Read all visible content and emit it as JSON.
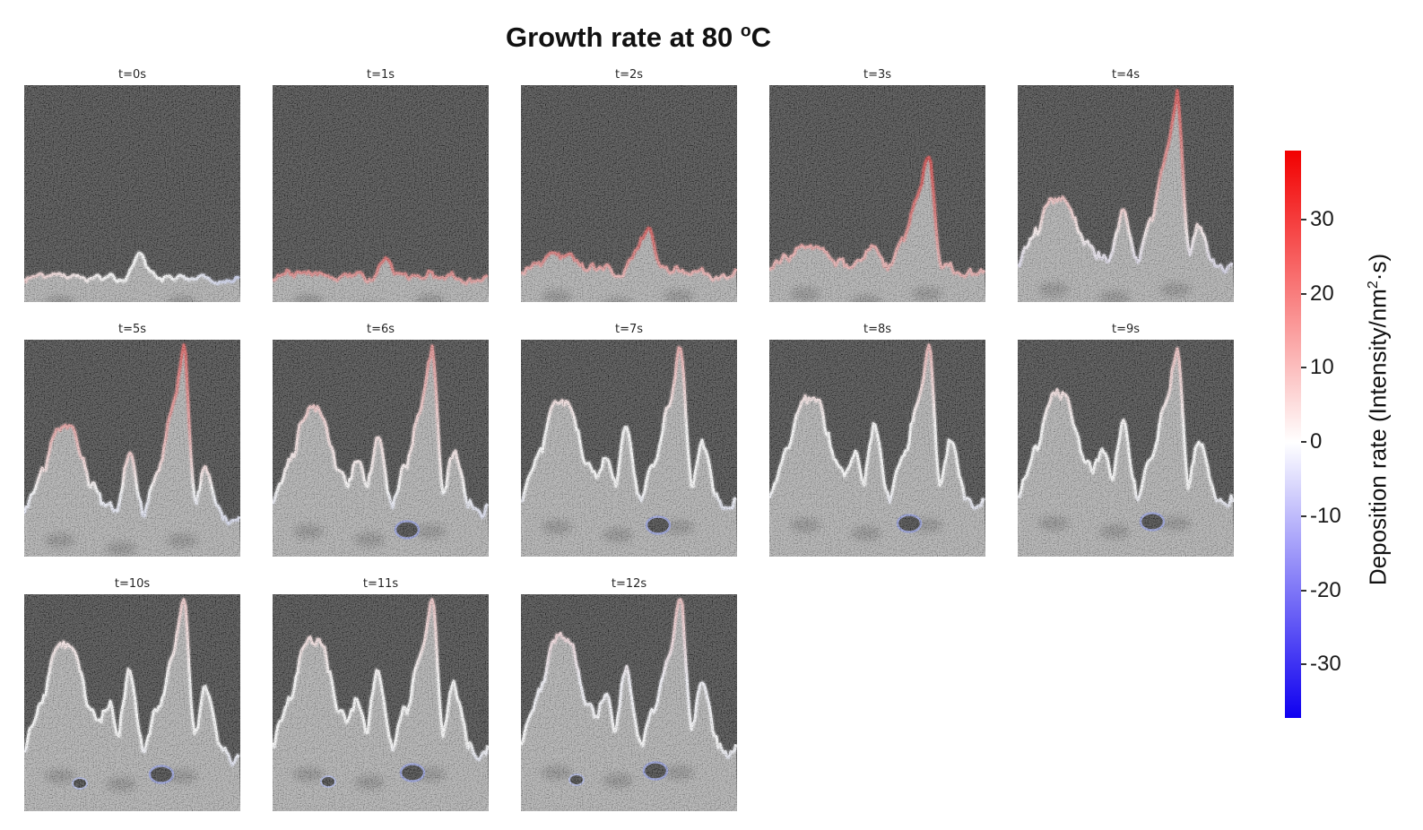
{
  "figure": {
    "title_pre": "Growth rate at 80 ",
    "title_sup": "o",
    "title_post": "C",
    "title_full": "Growth rate at 80 °C",
    "background_color": "#ffffff"
  },
  "chart_data": {
    "type": "heatmap",
    "title": "Growth rate at 80 °C",
    "colormap": "bwr (blue-white-red)",
    "colorbar_label": "Deposition rate (Intensity/nm²·s)",
    "colorbar_label_pre": "Deposition rate (Intensity/nm",
    "colorbar_label_sup": "2",
    "colorbar_label_post": "·s)",
    "colorbar_ticks": [
      30,
      20,
      10,
      0,
      -10,
      -20,
      -30
    ],
    "colorbar_range": [
      -37.2,
      39.3
    ],
    "color_positive": "#f20000",
    "color_zero": "#ffffff",
    "color_negative": "#0f00f0",
    "legend_position": "right",
    "grid": "off",
    "image_colors": {
      "background": "#323232",
      "deposit": "#ababab"
    },
    "frames": [
      {
        "label": "t=0s",
        "time_s": 0,
        "axis": "x",
        "contour": [
          "#eec6c6",
          "#ffffff",
          "#ffffff",
          "#c6cdf0"
        ],
        "render": {
          "base": 215,
          "rough": 4,
          "lobe": 0,
          "mid": 28,
          "midx": 130,
          "midw": 8,
          "spike": 0,
          "armL": 0,
          "armR": 0,
          "holes": 0
        }
      },
      {
        "label": "t=1s",
        "time_s": 1,
        "axis": "y",
        "contour": [
          "#d85a5a",
          "#dd7f7f",
          "#eaafaf",
          "#e2a6a6"
        ],
        "render": {
          "base": 213,
          "rough": 5,
          "lobe": 0,
          "mid": 15,
          "midx": 128,
          "midw": 9,
          "spike": 0,
          "armL": 0,
          "armR": 0,
          "holes": 0
        }
      },
      {
        "label": "t=2s",
        "time_s": 2,
        "axis": "y",
        "contour": [
          "#d14646",
          "#da7070",
          "#eeb6b6",
          "#e0a8a8"
        ],
        "render": {
          "base": 208,
          "rough": 6,
          "lobe": 14,
          "mid": 46,
          "midx": 140,
          "midw": 13,
          "spike": 0,
          "armL": 0,
          "armR": 0,
          "holes": 0
        }
      },
      {
        "label": "t=3s",
        "time_s": 3,
        "axis": "y",
        "contour": [
          "#cf3636",
          "#d86363",
          "#eaa8a8",
          "#dfa2a2"
        ],
        "render": {
          "base": 205,
          "rough": 7,
          "lobe": 22,
          "mid": 30,
          "midx": 112,
          "midw": 10,
          "spike": 125,
          "armL": 0,
          "armR": 0,
          "holes": 0
        }
      },
      {
        "label": "t=4s",
        "time_s": 4,
        "axis": "y",
        "contour": [
          "#d54040",
          "#e28c8c",
          "#fdf3f3",
          "#bcc2ea"
        ],
        "render": {
          "base": 200,
          "rough": 8,
          "lobe": 70,
          "mid": 0,
          "midx": 100,
          "midw": 13,
          "spike": 186,
          "armL": 58,
          "armR": 40,
          "holes": 0
        }
      },
      {
        "label": "t=5s",
        "time_s": 5,
        "axis": "y",
        "contour": [
          "#d94f4f",
          "#e69898",
          "#ffffff",
          "#b4bce8"
        ],
        "render": {
          "base": 196,
          "rough": 9,
          "lobe": 95,
          "mid": 0,
          "midx": 100,
          "midw": 13,
          "spike": 185,
          "armL": 66,
          "armR": 50,
          "holes": 0
        }
      },
      {
        "label": "t=6s",
        "time_s": 6,
        "axis": "y",
        "contour": [
          "#e08080",
          "#f6d8d8",
          "#ffffff",
          "#a2abdf"
        ],
        "render": {
          "base": 186,
          "rough": 10,
          "lobe": 105,
          "mid": 45,
          "midx": 95,
          "midw": 14,
          "spike": 170,
          "armL": 76,
          "armR": 58,
          "holes": 1
        }
      },
      {
        "label": "t=7s",
        "time_s": 7,
        "axis": "y",
        "contour": [
          "#e8a0a0",
          "#ffffff",
          "#ffffff",
          "#9fa8dd"
        ],
        "render": {
          "base": 181,
          "rough": 10,
          "lobe": 108,
          "mid": 46,
          "midx": 95,
          "midw": 14,
          "spike": 169,
          "armL": 80,
          "armR": 62,
          "holes": 1
        }
      },
      {
        "label": "t=8s",
        "time_s": 8,
        "axis": "y",
        "contour": [
          "#ebadad",
          "#ffffff",
          "#ffffff",
          "#9ea6dc"
        ],
        "render": {
          "base": 179,
          "rough": 10,
          "lobe": 110,
          "mid": 47,
          "midx": 95,
          "midw": 14,
          "spike": 167,
          "armL": 81,
          "armR": 63,
          "holes": 1
        }
      },
      {
        "label": "t=9s",
        "time_s": 9,
        "axis": "y",
        "contour": [
          "#eebaba",
          "#ffffff",
          "#ffffff",
          "#9ca4da"
        ],
        "render": {
          "base": 177,
          "rough": 10,
          "lobe": 112,
          "mid": 48,
          "midx": 95,
          "midw": 14,
          "spike": 165,
          "armL": 82,
          "armR": 64,
          "holes": 1
        }
      },
      {
        "label": "t=10s",
        "time_s": 10,
        "axis": "y",
        "contour": [
          "#f1c6c6",
          "#ffffff",
          "#ffffff",
          "#9aa2d9"
        ],
        "render": {
          "base": 175,
          "rough": 11,
          "lobe": 115,
          "mid": 49,
          "midx": 94,
          "midw": 14,
          "spike": 165,
          "armL": 84,
          "armR": 66,
          "holes": 2
        }
      },
      {
        "label": "t=11s",
        "time_s": 11,
        "axis": "y",
        "contour": [
          "#efc0c0",
          "#ffffff",
          "#ffffff",
          "#98a1d8"
        ],
        "render": {
          "base": 173,
          "rough": 11,
          "lobe": 118,
          "mid": 50,
          "midx": 94,
          "midw": 14,
          "spike": 165,
          "armL": 85,
          "armR": 68,
          "holes": 2
        }
      },
      {
        "label": "t=12s",
        "time_s": 12,
        "axis": "y",
        "contour": [
          "#edb9b9",
          "#f7f7ff",
          "#ffffff",
          "#96a0d7"
        ],
        "render": {
          "base": 171,
          "rough": 11,
          "lobe": 120,
          "mid": 51,
          "midx": 94,
          "midw": 14,
          "spike": 165,
          "armL": 86,
          "armR": 70,
          "holes": 2
        }
      }
    ]
  }
}
